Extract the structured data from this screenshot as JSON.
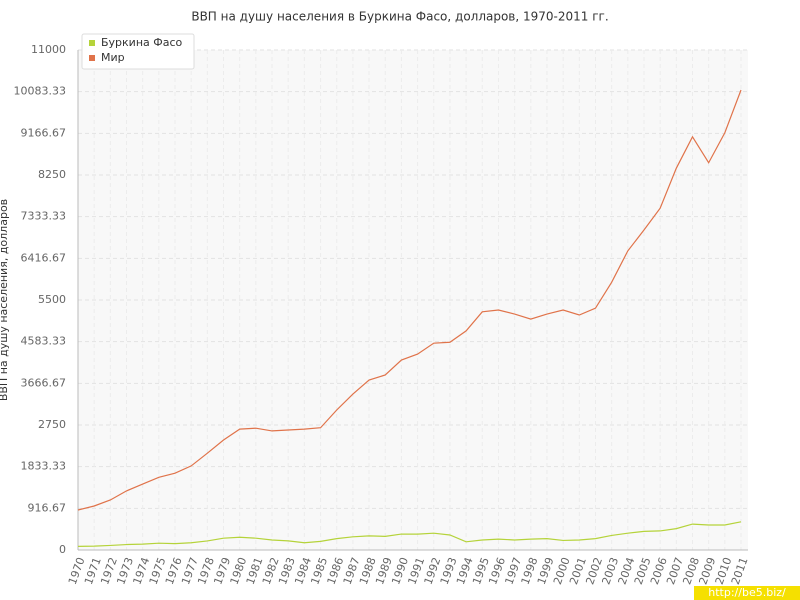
{
  "chart_data": {
    "type": "line",
    "title": "ВВП на душу населения в Буркина Фасо, долларов, 1970-2011 гг.",
    "y_label": "ВВП на душу населения, долларов",
    "watermark": "http://be5.biz/",
    "categories": [
      "1970",
      "1971",
      "1972",
      "1973",
      "1974",
      "1975",
      "1976",
      "1977",
      "1978",
      "1979",
      "1980",
      "1981",
      "1982",
      "1983",
      "1984",
      "1985",
      "1986",
      "1987",
      "1988",
      "1989",
      "1990",
      "1991",
      "1992",
      "1993",
      "1994",
      "1995",
      "1996",
      "1997",
      "1998",
      "1999",
      "2000",
      "2001",
      "2002",
      "2003",
      "2004",
      "2005",
      "2006",
      "2007",
      "2008",
      "2009",
      "2010",
      "2011"
    ],
    "series": [
      {
        "name": "Буркина Фасо",
        "color": "#b5d33a",
        "values": [
          80,
          85,
          100,
          120,
          130,
          150,
          140,
          160,
          200,
          260,
          280,
          260,
          220,
          200,
          160,
          190,
          250,
          290,
          310,
          300,
          350,
          350,
          370,
          330,
          180,
          220,
          240,
          220,
          240,
          250,
          210,
          220,
          250,
          320,
          370,
          410,
          420,
          470,
          570,
          550,
          550,
          620
        ]
      },
      {
        "name": "Мир",
        "color": "#e0734a",
        "values": [
          880,
          968,
          1100,
          1300,
          1450,
          1600,
          1690,
          1850,
          2130,
          2420,
          2660,
          2680,
          2620,
          2640,
          2660,
          2690,
          3080,
          3430,
          3740,
          3850,
          4180,
          4310,
          4550,
          4570,
          4820,
          5240,
          5280,
          5190,
          5080,
          5190,
          5280,
          5170,
          5320,
          5890,
          6580,
          7040,
          7520,
          8400,
          9090,
          8520,
          9180,
          10120
        ]
      }
    ],
    "ylim": [
      0,
      11000
    ],
    "yticks": [
      0,
      916.67,
      1833.33,
      2750,
      3666.67,
      4583.33,
      5500,
      6416.67,
      7333.33,
      8250,
      9166.67,
      10083.33,
      11000
    ],
    "grid": true,
    "legend": "top-left"
  }
}
